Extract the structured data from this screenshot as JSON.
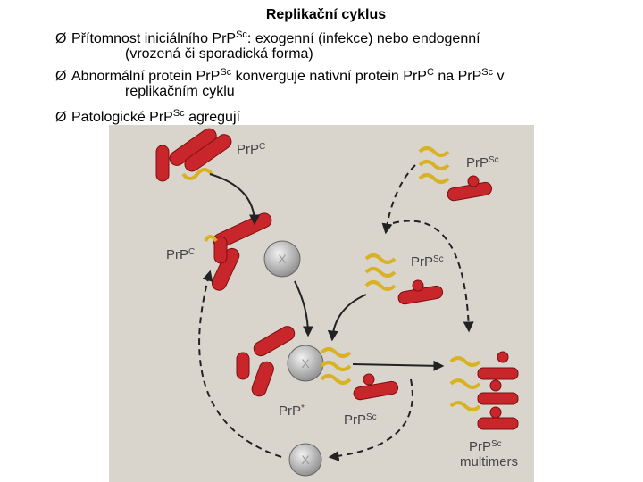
{
  "title": "Replikační cyklus",
  "bullets": [
    {
      "marker": "Ø",
      "lines": [
        [
          "Přítomnost iniciálního PrP",
          "Sc",
          ": exogenní (infekce) nebo endogenní"
        ],
        [
          "(vrozená či sporadická forma)"
        ]
      ]
    },
    {
      "marker": "Ø",
      "lines": [
        [
          "Abnormální protein PrP",
          "Sc",
          " konverguje nativní protein PrP",
          "C",
          " na PrP",
          "Sc",
          " v"
        ],
        [
          "replikačním cyklu"
        ]
      ]
    },
    {
      "marker": "Ø",
      "lines": [
        [
          "Patologické PrP",
          "Sc",
          " agregují"
        ]
      ]
    }
  ],
  "diagram": {
    "labels": [
      [
        "PrP",
        "C"
      ],
      [
        "PrP",
        "Sc"
      ],
      [
        "PrP",
        "C"
      ],
      [
        "PrP",
        "Sc"
      ],
      [
        "PrP",
        "*"
      ],
      [
        "PrP",
        "Sc"
      ],
      [
        "PrP",
        "Sc"
      ],
      [
        "multimers"
      ]
    ],
    "circle_label": "X"
  }
}
